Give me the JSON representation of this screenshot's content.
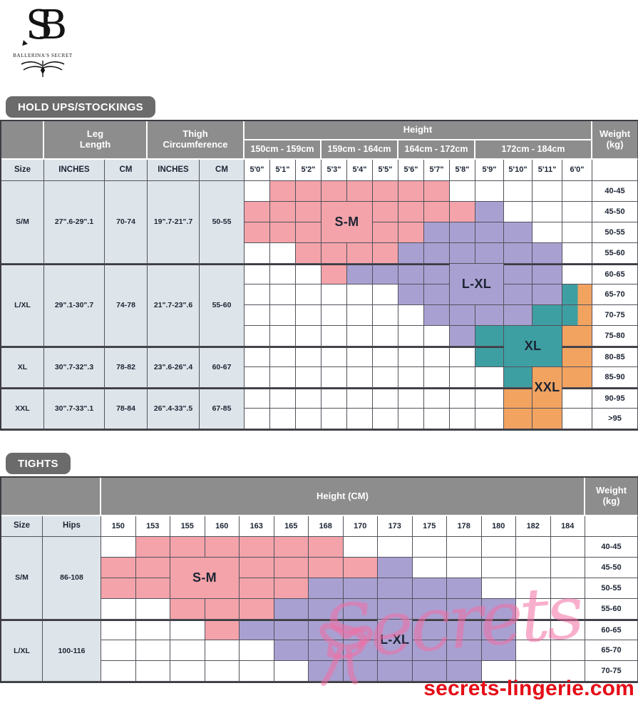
{
  "brand": {
    "monogram": "SB",
    "name": "BALLERINA'S SECRET"
  },
  "watermark": "Secrets",
  "site": "secrets-lingerie.com",
  "colors": {
    "pink": "#F4A3AA",
    "purple": "#A9A0D2",
    "teal": "#3E9FA3",
    "orange": "#F2A360",
    "header_gray": "#8D8D8D",
    "title_gray": "#6B6B6B",
    "left_column_bg": "#DEE5EA",
    "grid_line": "#52525C",
    "text_dark": "#1C2433",
    "site_red": "#E50D17",
    "watermark_pink": "#F26EA2"
  },
  "chart_data": [
    {
      "type": "heatmap",
      "title": "HOLD UPS/STOCKINGS",
      "x_label": "Height",
      "y_label": "Weight (kg)",
      "x": [
        "5'0\"",
        "5'1\"",
        "5'2\"",
        "5'3\"",
        "5'4\"",
        "5'5\"",
        "5'6\"",
        "5'7\"",
        "5'8\"",
        "5'9\"",
        "5'10\"",
        "5'11\"",
        "6'0\""
      ],
      "y": [
        "40-45",
        "45-50",
        "50-55",
        "55-60",
        "60-65",
        "65-70",
        "70-75",
        "75-80",
        "80-85",
        "85-90",
        "90-95",
        ">95"
      ],
      "legend": {
        "P": "S-M (pink)",
        "L": "L-XL (purple)",
        "T": "XL (teal)",
        "O": "XXL (orange)",
        "TO": "XL/XXL split"
      },
      "matrix": [
        [
          "",
          "P",
          "P",
          "P",
          "P",
          "P",
          "P",
          "P",
          "",
          "",
          "",
          "",
          ""
        ],
        [
          "P",
          "P",
          "P",
          "P",
          "P",
          "P",
          "P",
          "P",
          "P",
          "L",
          "",
          "",
          ""
        ],
        [
          "P",
          "P",
          "P",
          "P",
          "P",
          "P",
          "P",
          "L",
          "L",
          "L",
          "L",
          "",
          ""
        ],
        [
          "",
          "",
          "P",
          "P",
          "P",
          "P",
          "L",
          "L",
          "L",
          "L",
          "L",
          "L",
          ""
        ],
        [
          "",
          "",
          "",
          "P",
          "L",
          "L",
          "L",
          "L",
          "L",
          "L",
          "L",
          "L",
          ""
        ],
        [
          "",
          "",
          "",
          "",
          "",
          "",
          "L",
          "L",
          "L",
          "L",
          "L",
          "L",
          "TO"
        ],
        [
          "",
          "",
          "",
          "",
          "",
          "",
          "",
          "L",
          "L",
          "L",
          "L",
          "T",
          "TO"
        ],
        [
          "",
          "",
          "",
          "",
          "",
          "",
          "",
          "",
          "L",
          "T",
          "T",
          "T",
          "O"
        ],
        [
          "",
          "",
          "",
          "",
          "",
          "",
          "",
          "",
          "",
          "T",
          "T",
          "T",
          "O"
        ],
        [
          "",
          "",
          "",
          "",
          "",
          "",
          "",
          "",
          "",
          "",
          "T",
          "O",
          "O"
        ],
        [
          "",
          "",
          "",
          "",
          "",
          "",
          "",
          "",
          "",
          "",
          "O",
          "O",
          ""
        ],
        [
          "",
          "",
          "",
          "",
          "",
          "",
          "",
          "",
          "",
          "",
          "O",
          "O",
          ""
        ]
      ]
    },
    {
      "type": "heatmap",
      "title": "TIGHTS",
      "x_label": "Height (CM)",
      "y_label": "Weight (kg)",
      "x": [
        "150",
        "153",
        "155",
        "160",
        "163",
        "165",
        "168",
        "170",
        "173",
        "175",
        "178",
        "180",
        "182",
        "184"
      ],
      "y": [
        "40-45",
        "45-50",
        "50-55",
        "55-60",
        "60-65",
        "65-70",
        "70-75"
      ],
      "legend": {
        "P": "S-M (pink)",
        "L": "L-XL (purple)"
      },
      "matrix": [
        [
          "",
          "P",
          "P",
          "P",
          "P",
          "P",
          "P",
          "",
          "",
          "",
          "",
          "",
          "",
          ""
        ],
        [
          "P",
          "P",
          "P",
          "P",
          "P",
          "P",
          "P",
          "P",
          "L",
          "",
          "",
          "",
          "",
          ""
        ],
        [
          "P",
          "P",
          "P",
          "P",
          "P",
          "P",
          "L",
          "L",
          "L",
          "L",
          "L",
          "",
          "",
          ""
        ],
        [
          "",
          "",
          "P",
          "P",
          "P",
          "L",
          "L",
          "L",
          "L",
          "L",
          "L",
          "L",
          "",
          ""
        ],
        [
          "",
          "",
          "",
          "P",
          "L",
          "L",
          "L",
          "L",
          "L",
          "L",
          "L",
          "L",
          "",
          ""
        ],
        [
          "",
          "",
          "",
          "",
          "",
          "L",
          "L",
          "L",
          "L",
          "L",
          "L",
          "L",
          "",
          ""
        ],
        [
          "",
          "",
          "",
          "",
          "",
          "",
          "L",
          "L",
          "L",
          "L",
          "L",
          "",
          "",
          ""
        ]
      ]
    }
  ],
  "holdups": {
    "title": "HOLD UPS/STOCKINGS",
    "header": {
      "leg_label": "Leg\nLength",
      "thigh_label": "Thigh\nCircumference",
      "height_label": "Height",
      "weight_label": "Weight\n(kg)",
      "height_groups": [
        {
          "label": "150cm - 159cm",
          "span": 3
        },
        {
          "label": "159cm - 164cm",
          "span": 3
        },
        {
          "label": "164cm - 172cm",
          "span": 3
        },
        {
          "label": "172cm - 184cm",
          "span": 4
        }
      ],
      "sub_headers": [
        "Size",
        "INCHES",
        "CM",
        "INCHES",
        "CM"
      ]
    },
    "size_groups": [
      {
        "size": "S/M",
        "leg_inches": "27\".6-29\".1",
        "leg_cm": "70-74",
        "thigh_inches": "19\".7-21\".7",
        "thigh_cm": "50-55",
        "rows": 4
      },
      {
        "size": "L/XL",
        "leg_inches": "29\".1-30\".7",
        "leg_cm": "74-78",
        "thigh_inches": "21\".7-23\".6",
        "thigh_cm": "55-60",
        "rows": 4
      },
      {
        "size": "XL",
        "leg_inches": "30\".7-32\".3",
        "leg_cm": "78-82",
        "thigh_inches": "23\".6-26\".4",
        "thigh_cm": "60-67",
        "rows": 2
      },
      {
        "size": "XXL",
        "leg_inches": "30\".7-33\".1",
        "leg_cm": "78-84",
        "thigh_inches": "26\".4-33\".5",
        "thigh_cm": "67-85",
        "rows": 2
      }
    ],
    "labels": [
      {
        "text": "S-M",
        "row": 2,
        "col": 4,
        "rowspan": 2,
        "colspan": 2,
        "code": "P"
      },
      {
        "text": "L-XL",
        "row": 5,
        "col": 9,
        "rowspan": 2,
        "colspan": 2,
        "code": "L"
      },
      {
        "text": "XL",
        "row": 8,
        "col": 11,
        "rowspan": 2,
        "colspan": 2,
        "code": "T"
      },
      {
        "text": "XXL",
        "row": 10,
        "col": 12,
        "rowspan": 2,
        "colspan": 1,
        "code": "O"
      }
    ]
  },
  "tights": {
    "title": "TIGHTS",
    "header": {
      "height_label": "Height (CM)",
      "weight_label": "Weight\n(kg)",
      "sub_headers": [
        "Size",
        "Hips"
      ]
    },
    "size_groups": [
      {
        "size": "S/M",
        "hips": "86-108",
        "rows": 4
      },
      {
        "size": "L/XL",
        "hips": "100-116",
        "rows": 3
      }
    ],
    "labels": [
      {
        "text": "S-M",
        "row": 2,
        "col": 3,
        "rowspan": 2,
        "colspan": 2,
        "code": "P"
      },
      {
        "text": "L-XL",
        "row": 5,
        "col": 9,
        "rowspan": 2,
        "colspan": 1,
        "code": "L"
      }
    ]
  }
}
